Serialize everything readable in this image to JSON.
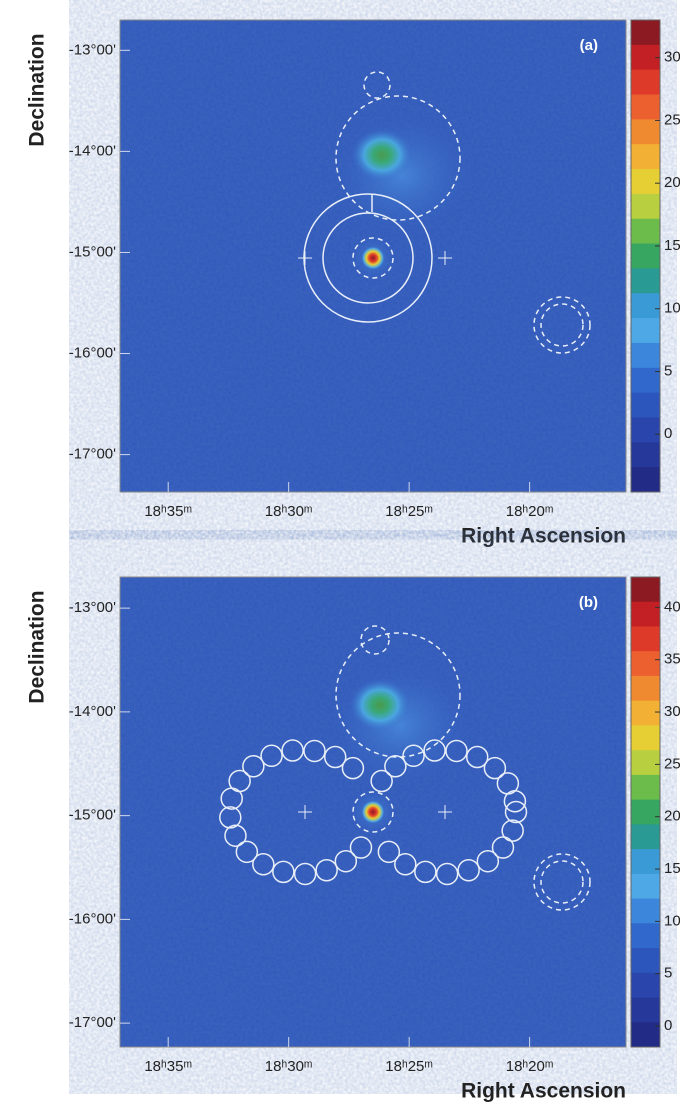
{
  "chart_data": [
    {
      "type": "heatmap",
      "panel_label": "(a)",
      "xlabel": "Right Ascension",
      "ylabel": "Declination",
      "xlim": [
        1117,
        1096
      ],
      "xticks": [
        {
          "value": 1115,
          "label": "18ʰ35ᵐ"
        },
        {
          "value": 1110,
          "label": "18ʰ30ᵐ"
        },
        {
          "value": 1105,
          "label": "18ʰ25ᵐ"
        },
        {
          "value": 1100,
          "label": "18ʰ20ᵐ"
        }
      ],
      "ylim": [
        -17.37,
        -12.7
      ],
      "yticks": [
        {
          "value": -13,
          "label": "-13°00'"
        },
        {
          "value": -14,
          "label": "-14°00'"
        },
        {
          "value": -15,
          "label": "-15°00'"
        },
        {
          "value": -16,
          "label": "-16°00'"
        },
        {
          "value": -17,
          "label": "-17°00'"
        }
      ],
      "colorbar": {
        "lim": [
          -4.6,
          33
        ],
        "ticks": [
          0,
          5,
          10,
          15,
          20,
          25,
          30
        ],
        "colors": [
          "#8b1a22",
          "#c22024",
          "#de3a2a",
          "#ec6030",
          "#f08a30",
          "#f2b034",
          "#e6cf34",
          "#b8d040",
          "#6cbc4c",
          "#36a660",
          "#2a9a94",
          "#3a9ad6",
          "#4ea8e6",
          "#3c86dc",
          "#3068cc",
          "#2c56bc",
          "#2a46ac",
          "#26389a",
          "#222c86"
        ]
      }
    },
    {
      "type": "heatmap",
      "panel_label": "(b)",
      "xlabel": "Right Ascension",
      "ylabel": "Declination",
      "xlim": [
        1117,
        1096
      ],
      "xticks": [
        {
          "value": 1115,
          "label": "18ʰ35ᵐ"
        },
        {
          "value": 1110,
          "label": "18ʰ30ᵐ"
        },
        {
          "value": 1105,
          "label": "18ʰ25ᵐ"
        },
        {
          "value": 1100,
          "label": "18ʰ20ᵐ"
        }
      ],
      "ylim": [
        -17.23,
        -12.7
      ],
      "yticks": [
        {
          "value": -13,
          "label": "-13°00'"
        },
        {
          "value": -14,
          "label": "-14°00'"
        },
        {
          "value": -15,
          "label": "-15°00'"
        },
        {
          "value": -16,
          "label": "-16°00'"
        },
        {
          "value": -17,
          "label": "-17°00'"
        }
      ],
      "colorbar": {
        "lim": [
          -2,
          42.9
        ],
        "ticks": [
          0,
          5,
          10,
          15,
          20,
          25,
          30,
          35,
          40
        ],
        "colors": [
          "#8b1a22",
          "#c22024",
          "#de3a2a",
          "#ec6030",
          "#f08a30",
          "#f2b034",
          "#e6cf34",
          "#b8d040",
          "#6cbc4c",
          "#36a660",
          "#2a9a94",
          "#3a9ad6",
          "#4ea8e6",
          "#3c86dc",
          "#3068cc",
          "#2c56bc",
          "#2a46ac",
          "#26389a",
          "#222c86"
        ]
      }
    }
  ]
}
